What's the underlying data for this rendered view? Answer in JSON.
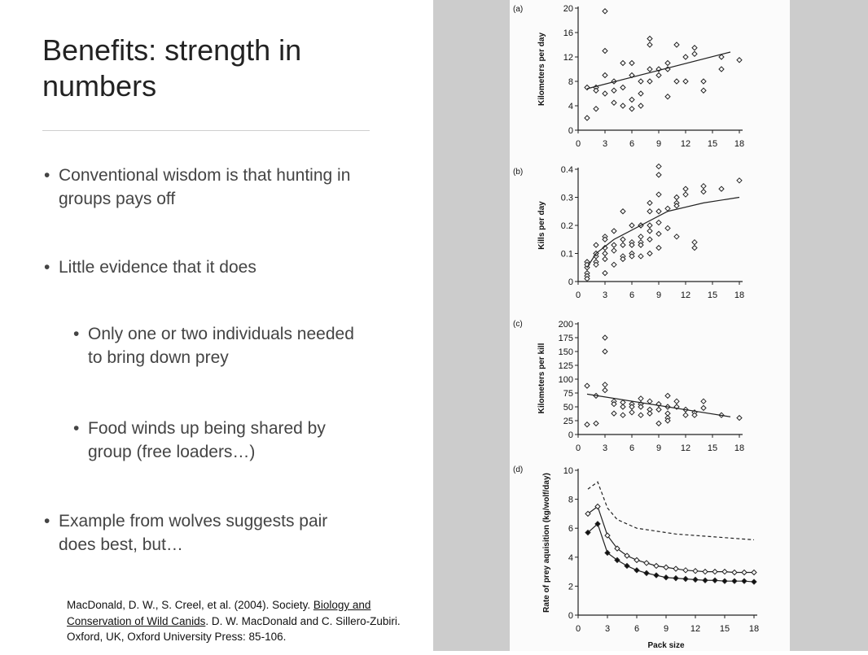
{
  "slide": {
    "title": "Benefits: strength in numbers",
    "bullets": [
      {
        "text": "Conventional wisdom is that hunting in groups pays off"
      },
      {
        "text": "Little evidence that it does"
      },
      {
        "text": "Only one or two individuals needed to bring down prey"
      },
      {
        "text": "Food winds up being shared by group (free loaders…)"
      },
      {
        "text": "Example from wolves suggests pair does best, but…"
      }
    ],
    "reference": {
      "part1": "MacDonald, D. W., S. Creel, et al. (2004). Society. ",
      "book_title": "Biology and Conservation of Wild Canids",
      "part2": ". D. W. MacDonald and C. Sillero-Zubiri. Oxford, UK, Oxford University Press: 85-106."
    }
  },
  "colors": {
    "sidebar_gray": "#cccccc",
    "figure_bg": "#fbfbfb",
    "text": "#444444"
  },
  "chart_data": [
    {
      "panel": "(a)",
      "type": "scatter",
      "ylabel": "Kilometers per day",
      "xticks": [
        "0",
        "3",
        "6",
        "9",
        "12",
        "15",
        "18"
      ],
      "yticks": [
        "0",
        "4",
        "8",
        "12",
        "16",
        "20"
      ],
      "xlim": [
        0,
        18
      ],
      "ylim": [
        0,
        20
      ],
      "points": [
        [
          1,
          7
        ],
        [
          1,
          2
        ],
        [
          2,
          7
        ],
        [
          2,
          6.5
        ],
        [
          2,
          3.5
        ],
        [
          3,
          9
        ],
        [
          3,
          6
        ],
        [
          3,
          13
        ],
        [
          3,
          19.5
        ],
        [
          4,
          8
        ],
        [
          4,
          6.5
        ],
        [
          4,
          4.5
        ],
        [
          5,
          7
        ],
        [
          5,
          4
        ],
        [
          5,
          11
        ],
        [
          6,
          11
        ],
        [
          6,
          5
        ],
        [
          6,
          3.5
        ],
        [
          6,
          9
        ],
        [
          7,
          8
        ],
        [
          7,
          6
        ],
        [
          7,
          4
        ],
        [
          8,
          10
        ],
        [
          8,
          8
        ],
        [
          8,
          15
        ],
        [
          8,
          14
        ],
        [
          9,
          9
        ],
        [
          9,
          10
        ],
        [
          10,
          5.5
        ],
        [
          10,
          10
        ],
        [
          10,
          11
        ],
        [
          11,
          14
        ],
        [
          11,
          8
        ],
        [
          12,
          8
        ],
        [
          12,
          12
        ],
        [
          13,
          13.5
        ],
        [
          13,
          12.5
        ],
        [
          14,
          8
        ],
        [
          14,
          6.5
        ],
        [
          16,
          12
        ],
        [
          16,
          10
        ],
        [
          18,
          11.5
        ]
      ],
      "fit": [
        [
          1,
          6.8
        ],
        [
          17,
          12.8
        ]
      ]
    },
    {
      "panel": "(b)",
      "type": "scatter",
      "ylabel": "Kills per day",
      "xticks": [
        "0",
        "3",
        "6",
        "9",
        "12",
        "15",
        "18"
      ],
      "yticks": [
        "0",
        "0.1",
        "0.2",
        "0.3",
        "0.4"
      ],
      "xlim": [
        0,
        18
      ],
      "ylim": [
        0,
        0.4
      ],
      "points": [
        [
          1,
          0.07
        ],
        [
          1,
          0.05
        ],
        [
          1,
          0.03
        ],
        [
          1,
          0.02
        ],
        [
          1,
          0.01
        ],
        [
          1,
          0.06
        ],
        [
          2,
          0.09
        ],
        [
          2,
          0.07
        ],
        [
          2,
          0.1
        ],
        [
          2,
          0.13
        ],
        [
          2,
          0.06
        ],
        [
          3,
          0.12
        ],
        [
          3,
          0.16
        ],
        [
          3,
          0.08
        ],
        [
          3,
          0.03
        ],
        [
          3,
          0.1
        ],
        [
          3,
          0.15
        ],
        [
          4,
          0.18
        ],
        [
          4,
          0.13
        ],
        [
          4,
          0.11
        ],
        [
          4,
          0.06
        ],
        [
          5,
          0.25
        ],
        [
          5,
          0.15
        ],
        [
          5,
          0.09
        ],
        [
          5,
          0.08
        ],
        [
          5,
          0.13
        ],
        [
          6,
          0.2
        ],
        [
          6,
          0.14
        ],
        [
          6,
          0.13
        ],
        [
          6,
          0.1
        ],
        [
          6,
          0.09
        ],
        [
          7,
          0.2
        ],
        [
          7,
          0.16
        ],
        [
          7,
          0.14
        ],
        [
          7,
          0.13
        ],
        [
          7,
          0.09
        ],
        [
          7,
          0.2
        ],
        [
          8,
          0.28
        ],
        [
          8,
          0.18
        ],
        [
          8,
          0.15
        ],
        [
          8,
          0.1
        ],
        [
          8,
          0.2
        ],
        [
          8,
          0.25
        ],
        [
          9,
          0.41
        ],
        [
          9,
          0.38
        ],
        [
          9,
          0.31
        ],
        [
          9,
          0.25
        ],
        [
          9,
          0.21
        ],
        [
          9,
          0.17
        ],
        [
          9,
          0.12
        ],
        [
          10,
          0.26
        ],
        [
          10,
          0.19
        ],
        [
          11,
          0.28
        ],
        [
          11,
          0.27
        ],
        [
          11,
          0.16
        ],
        [
          11,
          0.3
        ],
        [
          12,
          0.33
        ],
        [
          12,
          0.31
        ],
        [
          13,
          0.14
        ],
        [
          13,
          0.12
        ],
        [
          14,
          0.34
        ],
        [
          14,
          0.32
        ],
        [
          16,
          0.33
        ],
        [
          18,
          0.36
        ]
      ],
      "fit": [
        [
          1,
          0.05
        ],
        [
          2,
          0.1
        ],
        [
          4,
          0.15
        ],
        [
          7,
          0.2
        ],
        [
          10,
          0.25
        ],
        [
          14,
          0.28
        ],
        [
          18,
          0.3
        ]
      ]
    },
    {
      "panel": "(c)",
      "type": "scatter",
      "ylabel": "Kilometers per kill",
      "xticks": [
        "0",
        "3",
        "6",
        "9",
        "12",
        "15",
        "18"
      ],
      "yticks": [
        "0",
        "25",
        "50",
        "75",
        "100",
        "125",
        "150",
        "175",
        "200"
      ],
      "xlim": [
        0,
        18
      ],
      "ylim": [
        0,
        200
      ],
      "points": [
        [
          1,
          88
        ],
        [
          1,
          18
        ],
        [
          2,
          20
        ],
        [
          2,
          70
        ],
        [
          3,
          175
        ],
        [
          3,
          150
        ],
        [
          3,
          90
        ],
        [
          3,
          80
        ],
        [
          4,
          60
        ],
        [
          4,
          55
        ],
        [
          4,
          38
        ],
        [
          5,
          58
        ],
        [
          5,
          50
        ],
        [
          5,
          35
        ],
        [
          6,
          55
        ],
        [
          6,
          50
        ],
        [
          6,
          40
        ],
        [
          7,
          65
        ],
        [
          7,
          55
        ],
        [
          7,
          50
        ],
        [
          7,
          35
        ],
        [
          8,
          60
        ],
        [
          8,
          45
        ],
        [
          8,
          38
        ],
        [
          9,
          55
        ],
        [
          9,
          45
        ],
        [
          9,
          20
        ],
        [
          10,
          70
        ],
        [
          10,
          50
        ],
        [
          10,
          38
        ],
        [
          10,
          30
        ],
        [
          10,
          25
        ],
        [
          11,
          60
        ],
        [
          11,
          50
        ],
        [
          12,
          45
        ],
        [
          12,
          35
        ],
        [
          13,
          40
        ],
        [
          13,
          35
        ],
        [
          14,
          60
        ],
        [
          14,
          48
        ],
        [
          16,
          35
        ],
        [
          18,
          30
        ]
      ],
      "fit": [
        [
          1,
          73
        ],
        [
          17,
          32
        ]
      ]
    },
    {
      "panel": "(d)",
      "type": "line",
      "ylabel": "Rate of prey aquisition (kg/wolf/day)",
      "xlabel": "Pack size",
      "xticks": [
        "0",
        "3",
        "6",
        "9",
        "12",
        "15",
        "18"
      ],
      "yticks": [
        "0",
        "2",
        "4",
        "6",
        "8",
        "10"
      ],
      "xlim": [
        0,
        18
      ],
      "ylim": [
        0,
        10
      ],
      "series": [
        {
          "style": "dashed",
          "points": [
            [
              1,
              8.7
            ],
            [
              2,
              9.2
            ],
            [
              3,
              7.4
            ],
            [
              4,
              6.6
            ],
            [
              6,
              6
            ],
            [
              8,
              5.8
            ],
            [
              10,
              5.6
            ],
            [
              12,
              5.5
            ],
            [
              14,
              5.4
            ],
            [
              16,
              5.3
            ],
            [
              18,
              5.2
            ]
          ]
        },
        {
          "style": "open",
          "points": [
            [
              1,
              7
            ],
            [
              2,
              7.5
            ],
            [
              3,
              5.5
            ],
            [
              4,
              4.6
            ],
            [
              5,
              4.1
            ],
            [
              6,
              3.8
            ],
            [
              7,
              3.6
            ],
            [
              8,
              3.4
            ],
            [
              9,
              3.3
            ],
            [
              10,
              3.2
            ],
            [
              11,
              3.1
            ],
            [
              12,
              3.05
            ],
            [
              13,
              3
            ],
            [
              14,
              3
            ],
            [
              15,
              3
            ],
            [
              16,
              2.95
            ],
            [
              17,
              2.95
            ],
            [
              18,
              2.95
            ]
          ]
        },
        {
          "style": "filled",
          "points": [
            [
              1,
              5.7
            ],
            [
              2,
              6.3
            ],
            [
              3,
              4.3
            ],
            [
              4,
              3.8
            ],
            [
              5,
              3.4
            ],
            [
              6,
              3.1
            ],
            [
              7,
              2.9
            ],
            [
              8,
              2.75
            ],
            [
              9,
              2.6
            ],
            [
              10,
              2.55
            ],
            [
              11,
              2.5
            ],
            [
              12,
              2.45
            ],
            [
              13,
              2.4
            ],
            [
              14,
              2.4
            ],
            [
              15,
              2.35
            ],
            [
              16,
              2.35
            ],
            [
              17,
              2.35
            ],
            [
              18,
              2.3
            ]
          ]
        }
      ]
    }
  ]
}
